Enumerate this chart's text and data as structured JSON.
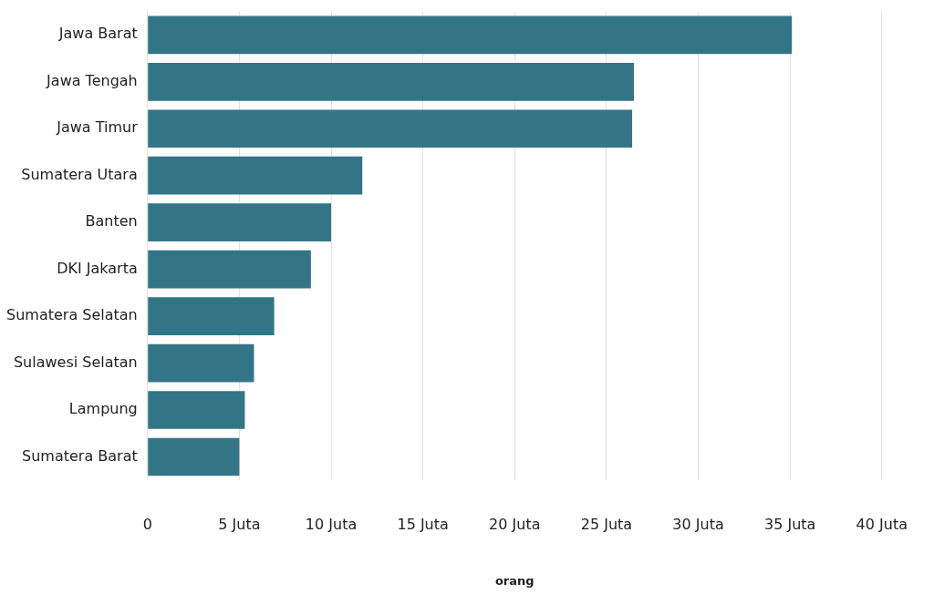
{
  "chart_data": {
    "type": "bar",
    "orientation": "horizontal",
    "xlabel": "orang",
    "categories": [
      "Jawa Barat",
      "Jawa Tengah",
      "Jawa Timur",
      "Sumatera Utara",
      "Banten",
      "DKI Jakarta",
      "Sumatera Selatan",
      "Sulawesi Selatan",
      "Lampung",
      "Sumatera Barat"
    ],
    "values": [
      35.1,
      26.5,
      26.4,
      11.7,
      10.0,
      8.9,
      6.9,
      5.8,
      5.3,
      5.0
    ],
    "color": "#337586",
    "xlim": [
      0,
      40
    ],
    "xticks": [
      0,
      {
        "value": 5,
        "label": "5 Juta"
      },
      {
        "value": 10,
        "label": "10 Juta"
      },
      {
        "value": 15,
        "label": "15 Juta"
      },
      {
        "value": 20,
        "label": "20 Juta"
      },
      {
        "value": 25,
        "label": "25 Juta"
      },
      {
        "value": 30,
        "label": "30 Juta"
      },
      {
        "value": 35,
        "label": "35 Juta"
      },
      {
        "value": 40,
        "label": "40 Juta"
      }
    ],
    "grid": "x",
    "legend": false
  }
}
